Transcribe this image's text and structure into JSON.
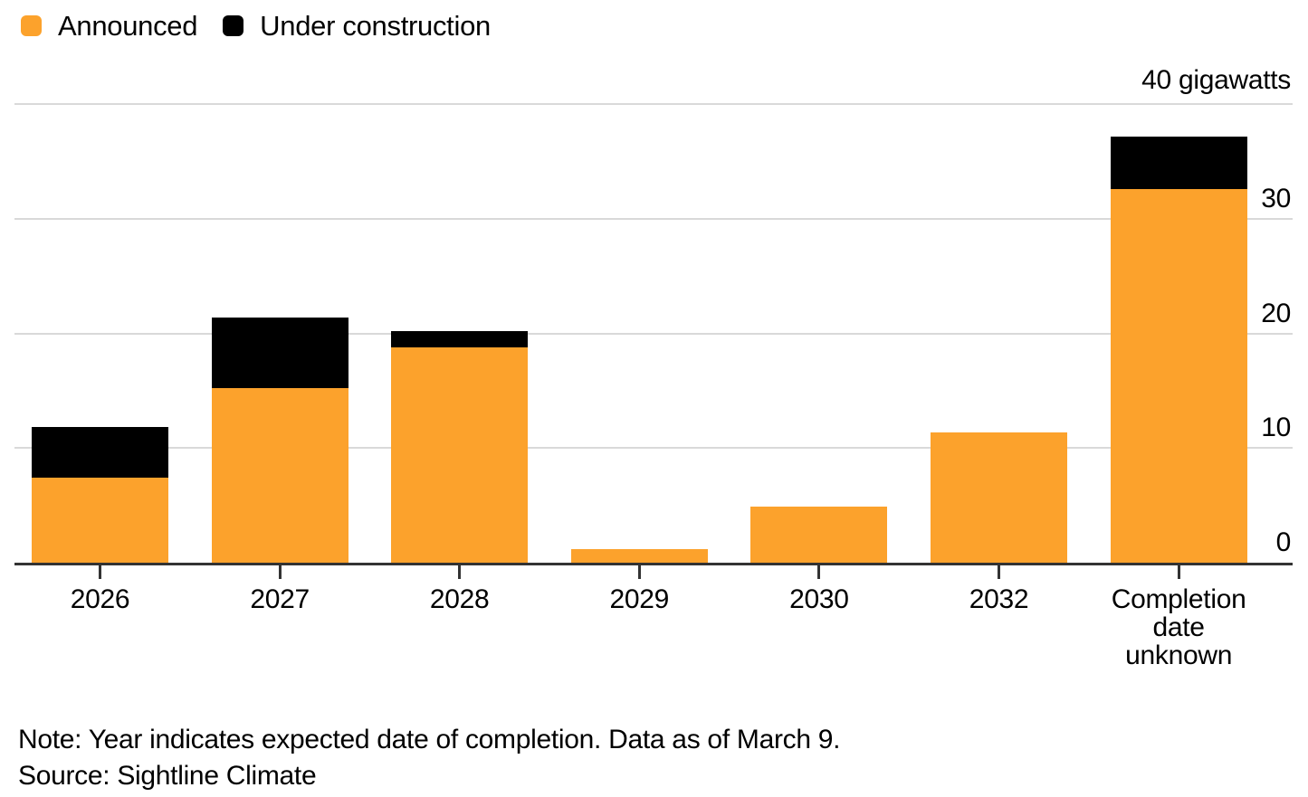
{
  "legend": {
    "items": [
      {
        "id": "announced",
        "label": "Announced",
        "color": "#FCA22C"
      },
      {
        "id": "under-construction",
        "label": "Under construction",
        "color": "#000000"
      }
    ]
  },
  "chart_data": {
    "type": "bar",
    "stacked": true,
    "title": "",
    "unit": "gigawatts",
    "top_axis_label": "40 gigawatts",
    "categories": [
      "2026",
      "2027",
      "2028",
      "2029",
      "2030",
      "2032",
      "Completion date unknown"
    ],
    "series": [
      {
        "name": "Announced",
        "color": "#FCA22C",
        "values": [
          7.4,
          15.2,
          18.8,
          1.2,
          4.9,
          11.4,
          32.6
        ]
      },
      {
        "name": "Under construction",
        "color": "#000000",
        "values": [
          4.4,
          6.2,
          1.4,
          0,
          0,
          0,
          4.6
        ]
      }
    ],
    "ylim": [
      0,
      40
    ],
    "yticks": [
      0,
      10,
      20,
      30,
      40
    ],
    "ytick_labels": [
      "0",
      "10",
      "20",
      "30",
      "40 gigawatts"
    ],
    "y_axis_side": "right",
    "grid": true,
    "legend_position": "top-left"
  },
  "footer": {
    "note": "Note: Year indicates expected date of completion. Data as of March 9.",
    "source": "Source: Sightline Climate"
  },
  "colors": {
    "announced": "#FCA22C",
    "under_construction": "#000000",
    "gridline": "#D9D9D9",
    "axis_line": "#333333",
    "text": "#000000",
    "background": "#FFFFFF"
  }
}
